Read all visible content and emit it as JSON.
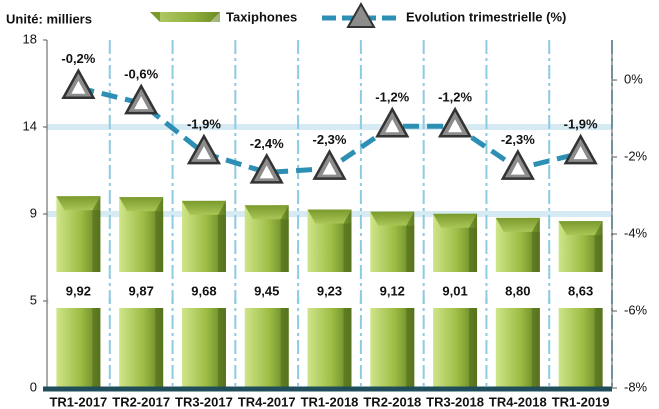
{
  "chart_data": {
    "type": "combo",
    "y_label": "Unité: milliers",
    "categories": [
      "TR1-2017",
      "TR2-2017",
      "TR3-2017",
      "TR4-2017",
      "TR1-2018",
      "TR2-2018",
      "TR3-2018",
      "TR4-2018",
      "TR1-2019"
    ],
    "series": [
      {
        "name": "Taxiphones",
        "type": "bar",
        "color": "#8fae3c",
        "values": [
          9.92,
          9.87,
          9.68,
          9.45,
          9.23,
          9.12,
          9.01,
          8.8,
          8.63
        ],
        "value_labels": [
          "9,92",
          "9,87",
          "9,68",
          "9,45",
          "9,23",
          "9,12",
          "9,01",
          "8,80",
          "8,63"
        ]
      },
      {
        "name": "Evolution trimestrielle (%)",
        "type": "line",
        "axis": "y2",
        "color": "#2e8fb4",
        "values": [
          -0.2,
          -0.6,
          -1.9,
          -2.4,
          -2.3,
          -1.2,
          -1.2,
          -2.3,
          -1.9
        ],
        "value_labels": [
          "-0,2%",
          "-0,6%",
          "-1,9%",
          "-2,4%",
          "-2,3%",
          "-1,2%",
          "-1,2%",
          "-2,3%",
          "-1,9%"
        ]
      }
    ],
    "ylim": [
      0,
      18
    ],
    "yticks": [
      0,
      {
        "value": 4.5,
        "label": "5"
      },
      9,
      {
        "value": 13.5,
        "label": "14"
      },
      18
    ],
    "y2lim": [
      -8,
      1.04
    ],
    "y2ticks": [
      {
        "value": 0,
        "label": "0%"
      },
      {
        "value": -2,
        "label": "-2%"
      },
      {
        "value": -4,
        "label": "-4%"
      },
      {
        "value": -6,
        "label": "-6%"
      },
      {
        "value": -8,
        "label": "-8%"
      }
    ],
    "grid": true,
    "legend": "top"
  }
}
